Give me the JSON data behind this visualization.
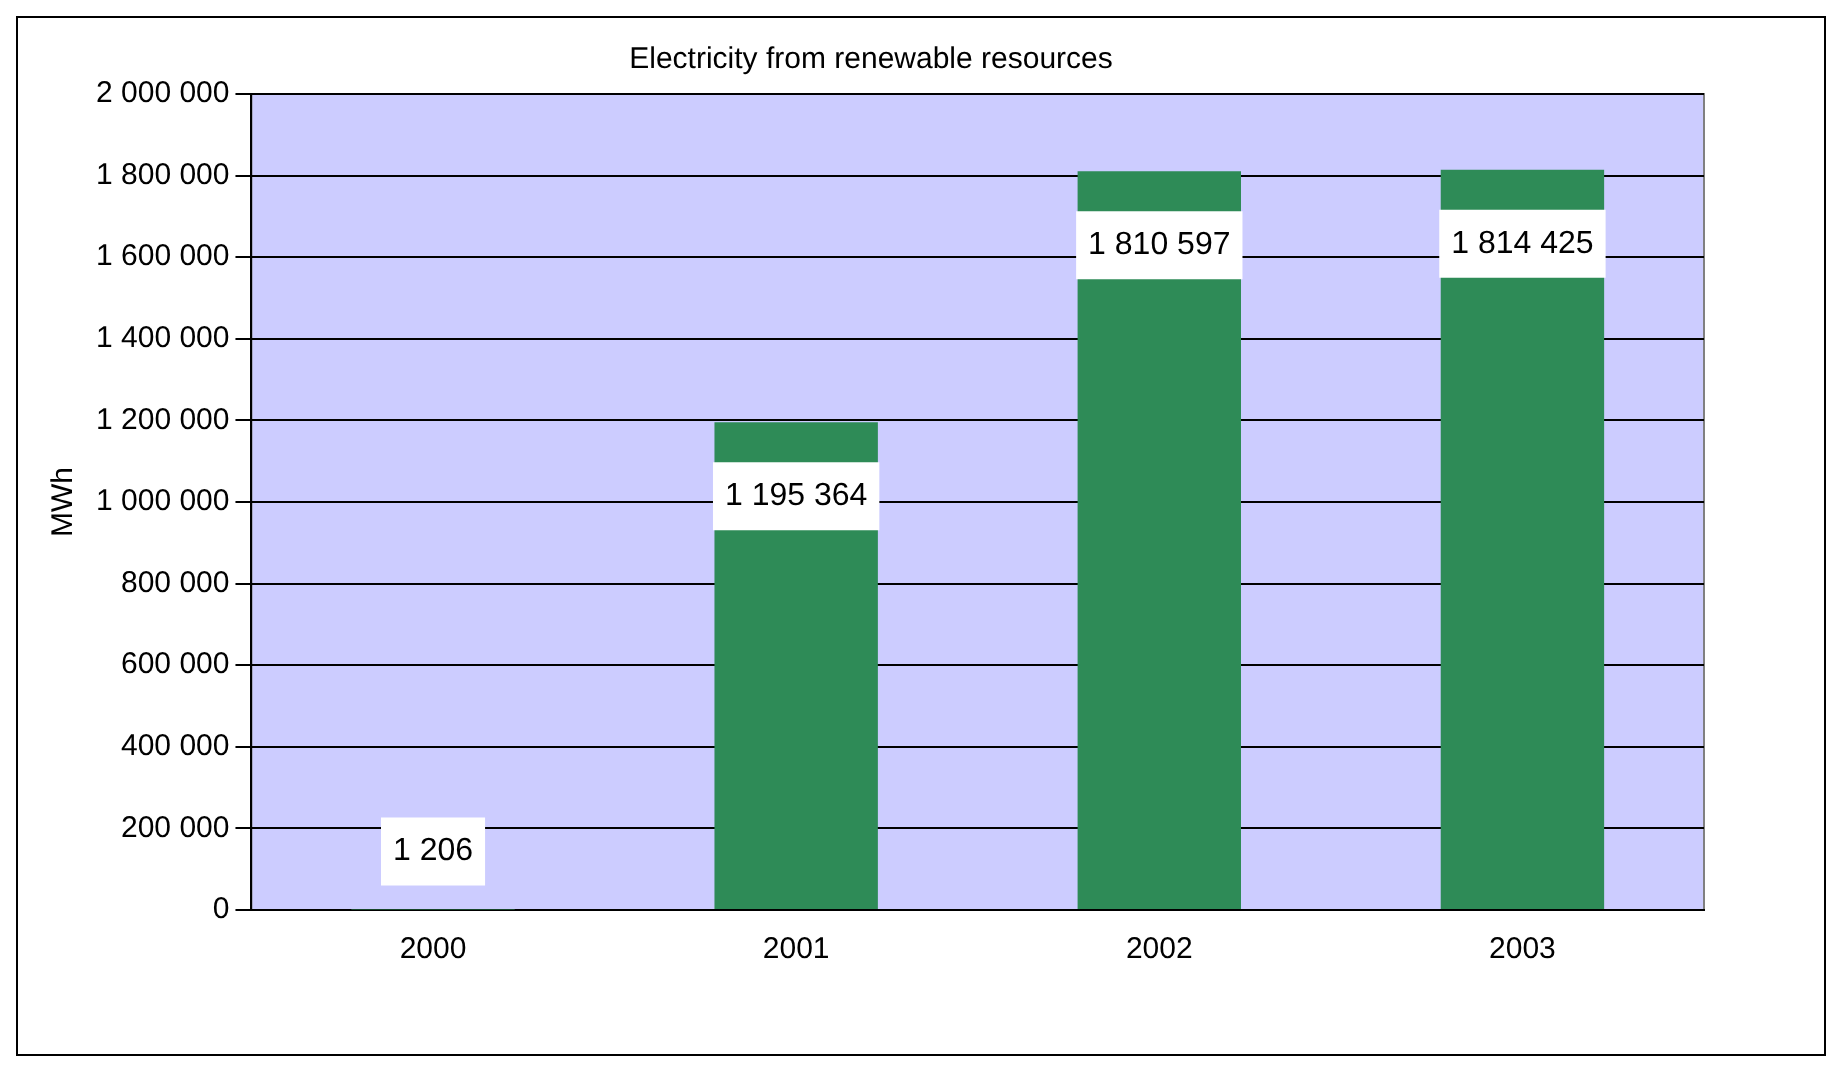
{
  "chart_data": {
    "type": "bar",
    "title": "Electricity from renewable resources",
    "ylabel": "MWh",
    "categories": [
      "2000",
      "2001",
      "2002",
      "2003"
    ],
    "values": [
      1206,
      1195364,
      1810597,
      1814425
    ],
    "value_labels": [
      "1 206",
      "1 195 364",
      "1 810 597",
      "1 814 425"
    ],
    "color": "#2e8b57",
    "ylim": [
      0,
      2000000
    ],
    "yticks": [
      {
        "value": 0,
        "label": "0"
      },
      {
        "value": 200000,
        "label": "200 000"
      },
      {
        "value": 400000,
        "label": "400 000"
      },
      {
        "value": 600000,
        "label": "600 000"
      },
      {
        "value": 800000,
        "label": "800 000"
      },
      {
        "value": 1000000,
        "label": "1 000 000"
      },
      {
        "value": 1200000,
        "label": "1 200 000"
      },
      {
        "value": 1400000,
        "label": "1 400 000"
      },
      {
        "value": 1600000,
        "label": "1 600 000"
      },
      {
        "value": 1800000,
        "label": "1 800 000"
      },
      {
        "value": 2000000,
        "label": "2 000 000"
      }
    ],
    "grid": "y",
    "legend": false
  }
}
